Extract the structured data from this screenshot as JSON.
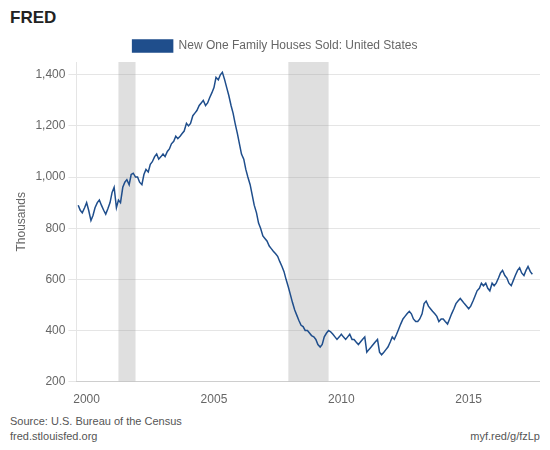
{
  "chart_data": {
    "type": "line",
    "y_label": "Thousands",
    "annotations": [
      "FRED",
      "Source: U.S. Bureau of the Census",
      "fred.stlouisfed.org",
      "myf.red/g/fzLp"
    ],
    "legend": "top",
    "grid": "y",
    "xlim": [
      1999.6,
      2017.8
    ],
    "xticks": [
      2000,
      2005,
      2010,
      2015
    ],
    "ylim": [
      200,
      1450
    ],
    "yticks": [
      200,
      400,
      600,
      800,
      {
        "value": 1000,
        "label": "1,000"
      },
      {
        "value": 1200,
        "label": "1,200"
      },
      {
        "value": 1400,
        "label": "1,400"
      }
    ],
    "recession_bands": [
      {
        "start": 2001.25,
        "end": 2001.92
      },
      {
        "start": 2007.92,
        "end": 2009.5
      }
    ],
    "x": [
      1999.67,
      1999.75,
      1999.83,
      1999.92,
      2000.0,
      2000.08,
      2000.17,
      2000.25,
      2000.33,
      2000.42,
      2000.5,
      2000.58,
      2000.67,
      2000.75,
      2000.83,
      2000.92,
      2001.0,
      2001.08,
      2001.17,
      2001.25,
      2001.33,
      2001.42,
      2001.5,
      2001.58,
      2001.67,
      2001.75,
      2001.83,
      2001.92,
      2002.0,
      2002.08,
      2002.17,
      2002.25,
      2002.33,
      2002.42,
      2002.5,
      2002.58,
      2002.67,
      2002.75,
      2002.83,
      2002.92,
      2003.0,
      2003.08,
      2003.17,
      2003.25,
      2003.33,
      2003.42,
      2003.5,
      2003.58,
      2003.67,
      2003.75,
      2003.83,
      2003.92,
      2004.0,
      2004.08,
      2004.17,
      2004.25,
      2004.33,
      2004.42,
      2004.5,
      2004.58,
      2004.67,
      2004.75,
      2004.83,
      2004.92,
      2005.0,
      2005.08,
      2005.17,
      2005.25,
      2005.33,
      2005.42,
      2005.5,
      2005.58,
      2005.67,
      2005.75,
      2005.83,
      2005.92,
      2006.0,
      2006.08,
      2006.17,
      2006.25,
      2006.33,
      2006.42,
      2006.5,
      2006.58,
      2006.67,
      2006.75,
      2006.83,
      2006.92,
      2007.0,
      2007.08,
      2007.17,
      2007.25,
      2007.33,
      2007.42,
      2007.5,
      2007.58,
      2007.67,
      2007.75,
      2007.83,
      2007.92,
      2008.0,
      2008.08,
      2008.17,
      2008.25,
      2008.33,
      2008.42,
      2008.5,
      2008.58,
      2008.67,
      2008.75,
      2008.83,
      2008.92,
      2009.0,
      2009.08,
      2009.17,
      2009.25,
      2009.33,
      2009.42,
      2009.5,
      2009.58,
      2009.67,
      2009.75,
      2009.83,
      2009.92,
      2010.0,
      2010.08,
      2010.17,
      2010.25,
      2010.33,
      2010.42,
      2010.5,
      2010.58,
      2010.67,
      2010.75,
      2010.83,
      2010.92,
      2011.0,
      2011.08,
      2011.17,
      2011.25,
      2011.33,
      2011.42,
      2011.5,
      2011.58,
      2011.67,
      2011.75,
      2011.83,
      2011.92,
      2012.0,
      2012.08,
      2012.17,
      2012.25,
      2012.33,
      2012.42,
      2012.5,
      2012.58,
      2012.67,
      2012.75,
      2012.83,
      2012.92,
      2013.0,
      2013.08,
      2013.17,
      2013.25,
      2013.33,
      2013.42,
      2013.5,
      2013.58,
      2013.67,
      2013.75,
      2013.83,
      2013.92,
      2014.0,
      2014.08,
      2014.17,
      2014.25,
      2014.33,
      2014.42,
      2014.5,
      2014.58,
      2014.67,
      2014.75,
      2014.83,
      2014.92,
      2015.0,
      2015.08,
      2015.17,
      2015.25,
      2015.33,
      2015.42,
      2015.5,
      2015.58,
      2015.67,
      2015.75,
      2015.83,
      2015.92,
      2016.0,
      2016.08,
      2016.17,
      2016.25,
      2016.33,
      2016.42,
      2016.5,
      2016.58,
      2016.67,
      2016.75,
      2016.83,
      2016.92,
      2017.0,
      2017.08,
      2017.17,
      2017.25,
      2017.33,
      2017.42,
      2017.5
    ],
    "series": [
      {
        "name": "New One Family Houses Sold: United States",
        "color": "#1f4e8c",
        "values": [
          890,
          870,
          860,
          880,
          900,
          870,
          830,
          850,
          880,
          900,
          910,
          890,
          870,
          855,
          875,
          900,
          940,
          960,
          880,
          910,
          900,
          960,
          980,
          990,
          970,
          1010,
          1015,
          1000,
          1000,
          980,
          970,
          1010,
          1030,
          1020,
          1050,
          1060,
          1080,
          1090,
          1070,
          1080,
          1090,
          1080,
          1100,
          1110,
          1130,
          1140,
          1160,
          1150,
          1160,
          1170,
          1180,
          1210,
          1200,
          1210,
          1240,
          1250,
          1260,
          1280,
          1290,
          1300,
          1280,
          1290,
          1310,
          1330,
          1350,
          1390,
          1380,
          1400,
          1410,
          1380,
          1350,
          1320,
          1280,
          1250,
          1210,
          1170,
          1130,
          1090,
          1070,
          1030,
          1000,
          970,
          930,
          890,
          860,
          820,
          800,
          770,
          760,
          750,
          730,
          720,
          710,
          700,
          690,
          670,
          650,
          630,
          600,
          570,
          540,
          510,
          480,
          460,
          440,
          420,
          415,
          400,
          400,
          390,
          380,
          375,
          365,
          345,
          335,
          345,
          375,
          390,
          400,
          395,
          385,
          375,
          365,
          375,
          385,
          375,
          365,
          375,
          385,
          365,
          365,
          355,
          345,
          355,
          365,
          375,
          315,
          325,
          335,
          345,
          355,
          365,
          315,
          305,
          315,
          325,
          335,
          355,
          375,
          365,
          385,
          405,
          425,
          445,
          455,
          465,
          475,
          465,
          445,
          435,
          435,
          445,
          465,
          505,
          515,
          495,
          485,
          475,
          465,
          455,
          435,
          445,
          445,
          435,
          425,
          445,
          465,
          485,
          505,
          515,
          525,
          515,
          505,
          495,
          485,
          495,
          515,
          535,
          555,
          565,
          585,
          575,
          585,
          565,
          555,
          585,
          575,
          585,
          605,
          625,
          635,
          615,
          605,
          585,
          575,
          595,
          615,
          635,
          645,
          625,
          615,
          635,
          650,
          630,
          620
        ]
      }
    ]
  }
}
